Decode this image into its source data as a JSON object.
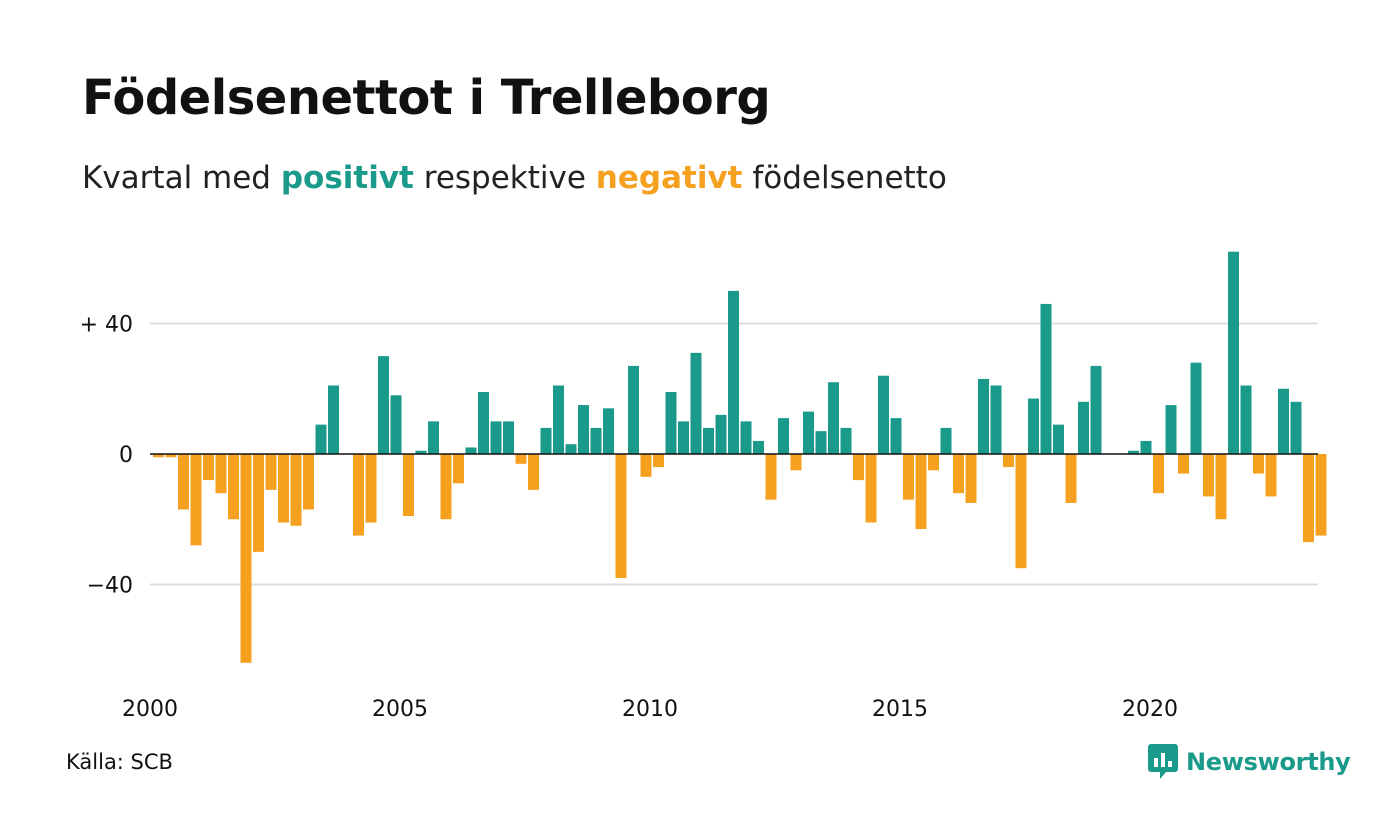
{
  "title": "Födelsenettot i Trelleborg",
  "subtitle": {
    "prefix": "Kvartal med",
    "positive": "positivt",
    "middle": "respektive",
    "negative": "negativt",
    "suffix": "födelsenetto"
  },
  "source": "Källa: SCB",
  "brand": "Newsworthy",
  "colors": {
    "positive": "#1a9a8a",
    "negative": "#f5a01e",
    "grid": "#dddddd",
    "zero_line": "#111111"
  },
  "chart_data": {
    "type": "bar",
    "title": "Födelsenettot i Trelleborg",
    "x_start": "2000-Q1",
    "x_tick_labels": [
      "2000",
      "2005",
      "2010",
      "2015",
      "2020"
    ],
    "y_tick_labels": [
      "+ 40",
      "0",
      "−40"
    ],
    "y_ticks": [
      40,
      0,
      -40
    ],
    "ylim": [
      -66,
      64
    ],
    "grid": true,
    "values": [
      -1,
      -1,
      -17,
      -28,
      -8,
      -12,
      -20,
      -64,
      -30,
      -11,
      -21,
      -22,
      -17,
      9,
      21,
      0,
      -25,
      -21,
      30,
      18,
      -19,
      1,
      10,
      -20,
      -9,
      2,
      19,
      10,
      10,
      -3,
      -11,
      8,
      21,
      3,
      15,
      8,
      14,
      -38,
      27,
      -7,
      -4,
      19,
      10,
      31,
      8,
      12,
      50,
      10,
      4,
      -14,
      11,
      -5,
      13,
      7,
      22,
      8,
      -8,
      -21,
      24,
      11,
      -14,
      -23,
      -5,
      8,
      -12,
      -15,
      23,
      21,
      -4,
      -35,
      17,
      46,
      9,
      -15,
      16,
      27,
      0,
      0,
      1,
      4,
      -12,
      15,
      -6,
      28,
      -13,
      -20,
      62,
      21,
      -6,
      -13,
      20,
      16,
      -27,
      -25
    ]
  }
}
